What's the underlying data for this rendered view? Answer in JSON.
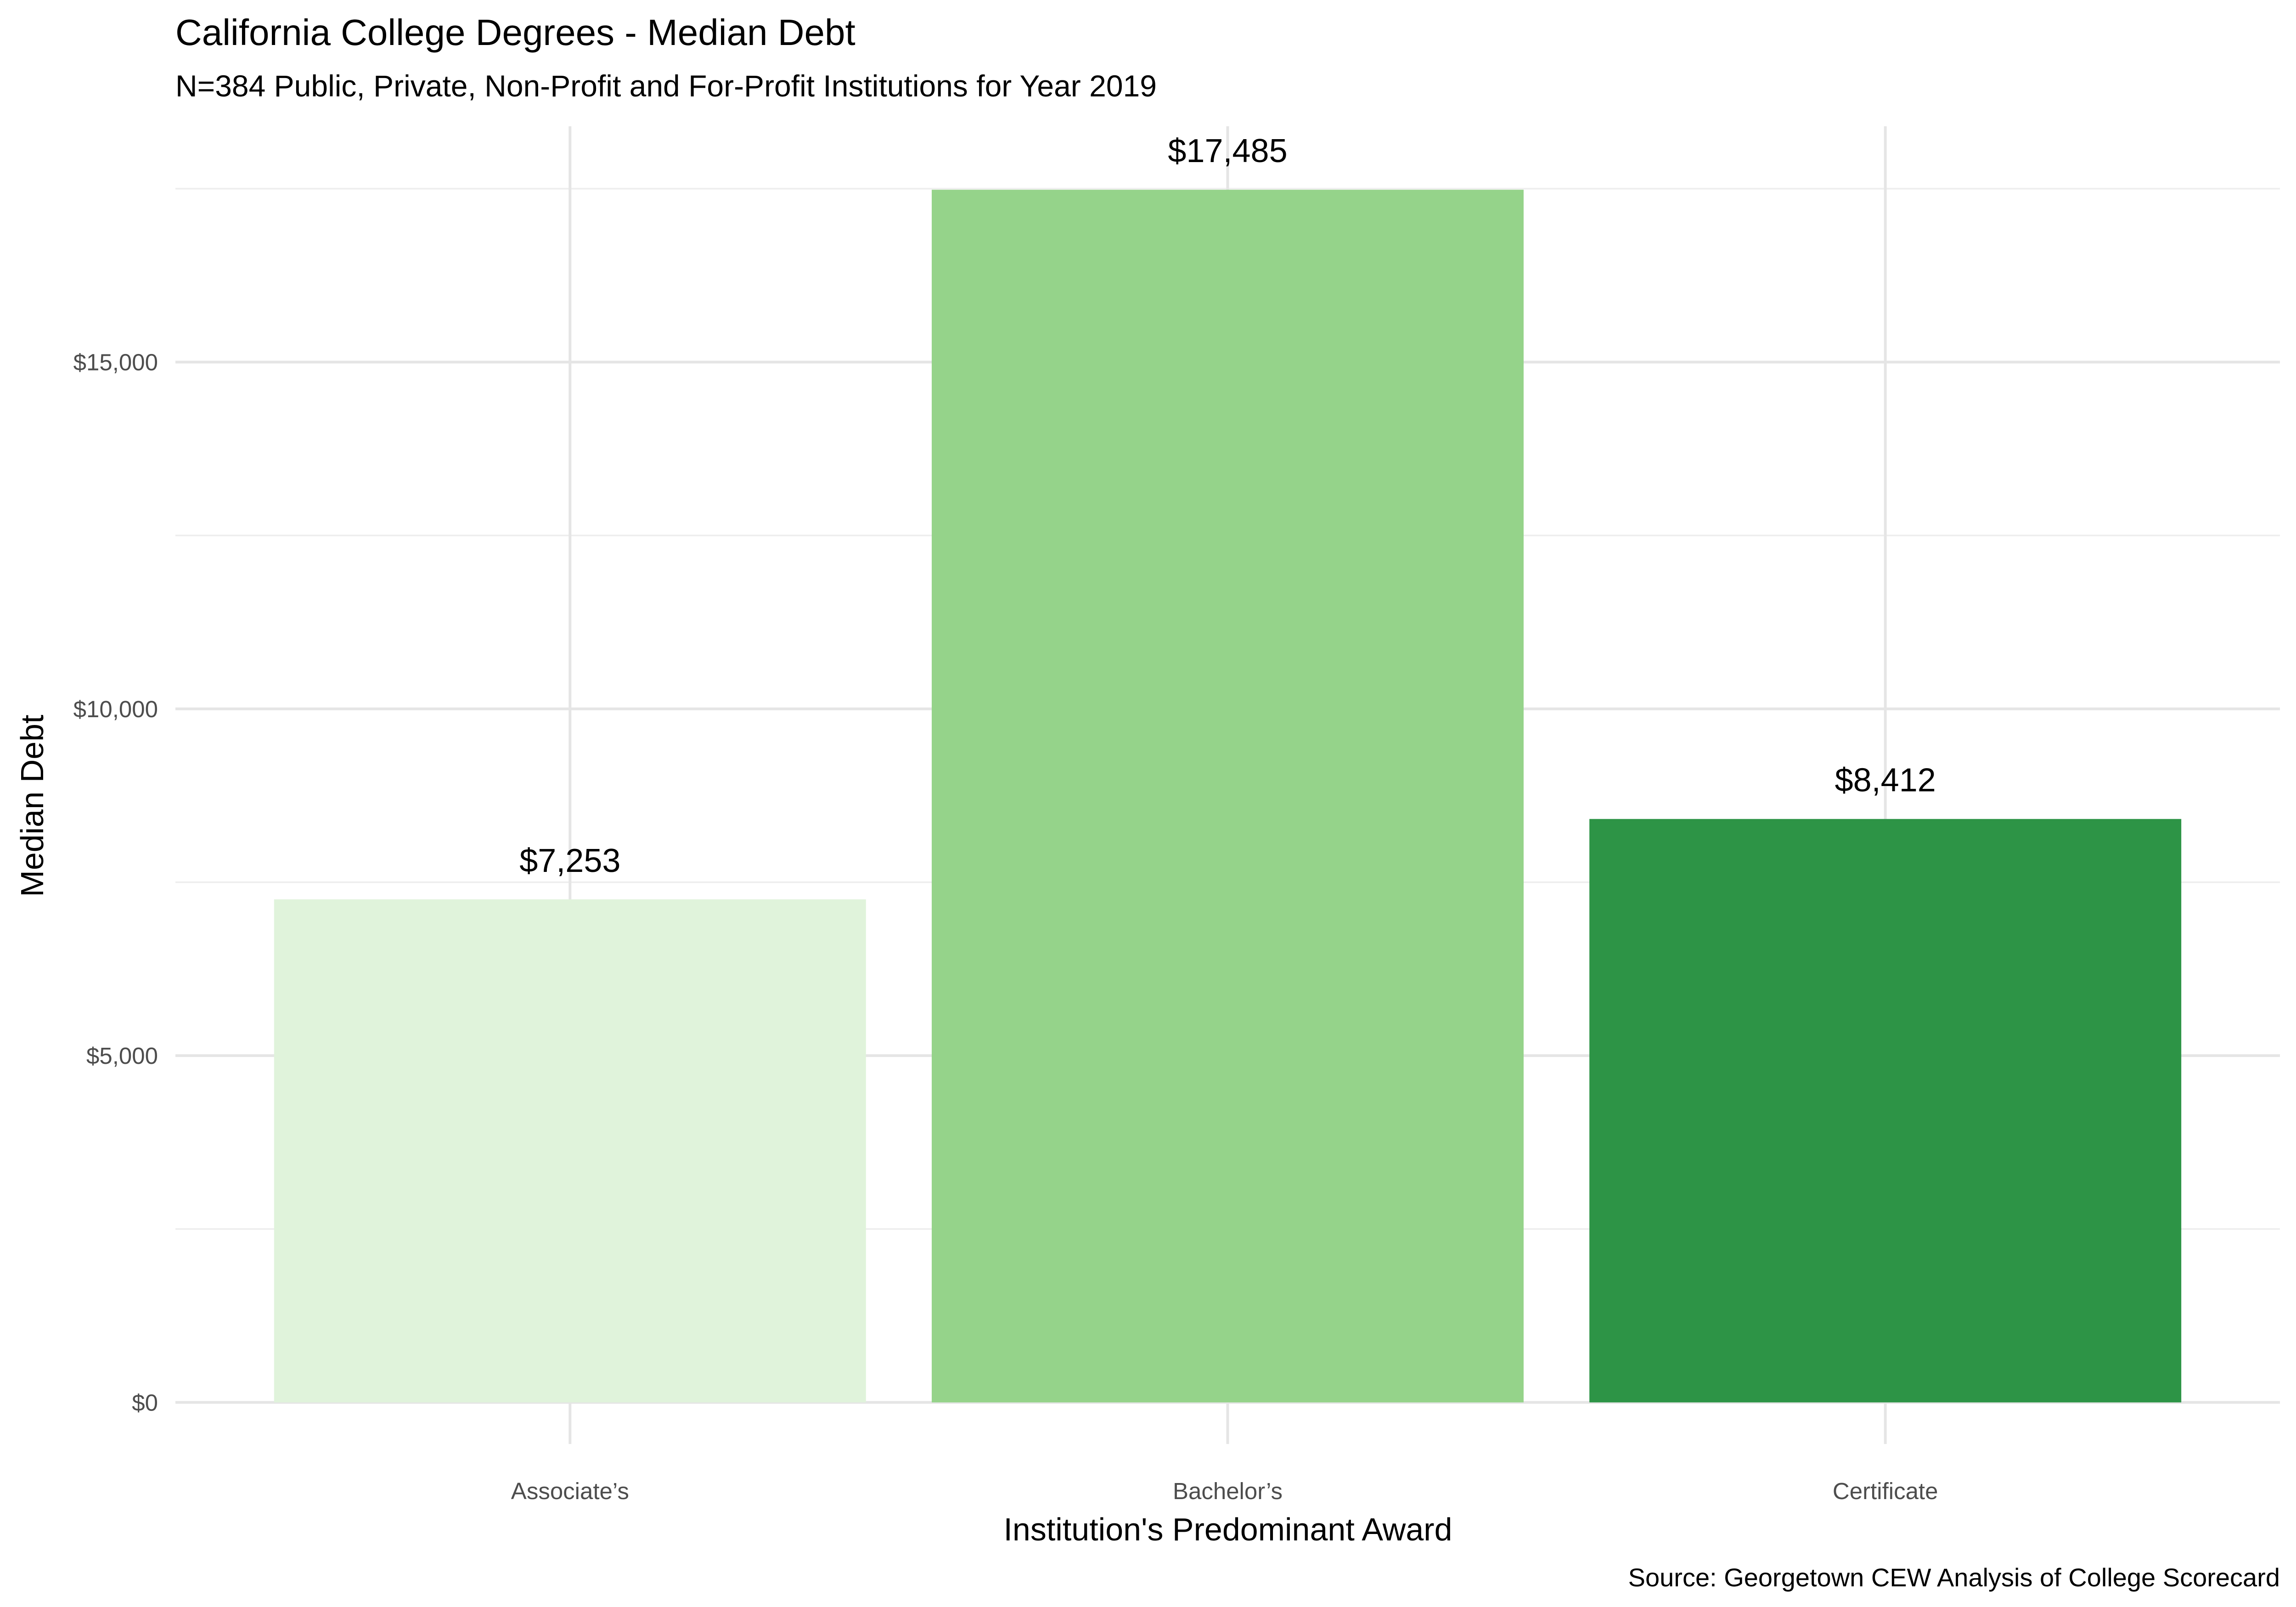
{
  "chart_data": {
    "type": "bar",
    "title": "California College Degrees - Median Debt",
    "subtitle": "N=384 Public, Private, Non-Profit and For-Profit Institutions for Year 2019",
    "xlabel": "Institution's Predominant Award",
    "ylabel": "Median Debt",
    "caption": "Source: Georgetown CEW Analysis of College Scorecard",
    "categories": [
      "Associate’s",
      "Bachelor’s",
      "Certificate"
    ],
    "values": [
      7253,
      17485,
      8412
    ],
    "value_labels": [
      "$7,253",
      "$17,485",
      "$8,412"
    ],
    "bar_colors": [
      "#e0f3db",
      "#95d38a",
      "#2d9446"
    ],
    "ylim": [
      -600,
      18400
    ],
    "y_ticks": [
      0,
      5000,
      10000,
      15000
    ],
    "y_tick_labels": [
      "$0",
      "$5,000",
      "$10,000",
      "$15,000"
    ],
    "y_minor_ticks": [
      2500,
      7500,
      12500,
      17500
    ],
    "grid": true,
    "legend": "none"
  }
}
